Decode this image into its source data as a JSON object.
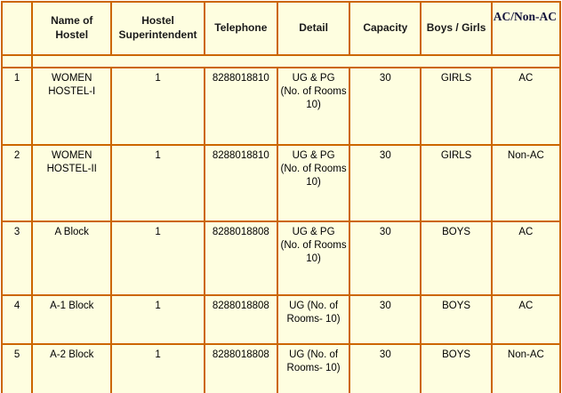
{
  "colors": {
    "table_background": "#FEFEE0",
    "border_orange": "#CC6600",
    "bottom_border_green": "#5E8B27",
    "header_text": "#1A1A1A",
    "ac_header_text": "#14143C",
    "cell_text": "#000000"
  },
  "table": {
    "headers": [
      "",
      "Name of\nHostel",
      "Hostel\nSuperintendent",
      "Telephone",
      "Detail",
      "Capacity",
      "Boys / Girls",
      "AC/Non-AC"
    ],
    "fields": [
      "sno",
      "name",
      "superintendent",
      "telephone",
      "detail",
      "capacity",
      "boys_girls",
      "ac_non_ac"
    ],
    "rows": [
      {
        "sno": "1",
        "name": "WOMEN\nHOSTEL-I",
        "superintendent": "1",
        "telephone": "8288018810",
        "detail": "UG & PG\n(No. of Rooms\n10)",
        "capacity": "30",
        "boys_girls": "GIRLS",
        "ac_non_ac": "AC"
      },
      {
        "sno": "2",
        "name": "WOMEN\nHOSTEL-II",
        "superintendent": "1",
        "telephone": "8288018810",
        "detail": "UG & PG\n(No. of Rooms\n10)",
        "capacity": "30",
        "boys_girls": "GIRLS",
        "ac_non_ac": "Non-AC"
      },
      {
        "sno": "3",
        "name": "A Block",
        "superintendent": "1",
        "telephone": "8288018808",
        "detail": "UG & PG\n(No. of Rooms\n10)",
        "capacity": "30",
        "boys_girls": "BOYS",
        "ac_non_ac": "AC"
      },
      {
        "sno": "4",
        "name": "A-1 Block",
        "superintendent": "1",
        "telephone": "8288018808",
        "detail": "UG (No. of\nRooms- 10)",
        "capacity": "30",
        "boys_girls": "BOYS",
        "ac_non_ac": "AC"
      },
      {
        "sno": "5",
        "name": "A-2 Block",
        "superintendent": "1",
        "telephone": "8288018808",
        "detail": "UG (No. of\nRooms- 10)",
        "capacity": "30",
        "boys_girls": "BOYS",
        "ac_non_ac": "Non-AC"
      }
    ]
  }
}
